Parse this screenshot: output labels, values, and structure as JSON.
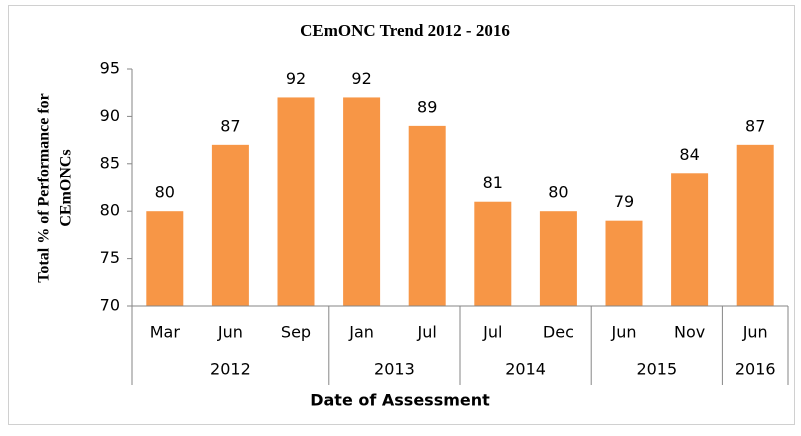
{
  "chart_data": {
    "type": "bar",
    "title": "CEmONC Trend 2012 - 2016",
    "ylabel": [
      "Total % of Performance for",
      "CEmONCs"
    ],
    "xlabel": "Date of Assessment",
    "color": "#f79646",
    "ylim": [
      70,
      95
    ],
    "yticks": [
      70,
      75,
      80,
      85,
      90,
      95
    ],
    "groups": [
      {
        "label": "2012",
        "categories": [
          "Mar",
          "Jun",
          "Sep"
        ],
        "values": [
          80,
          87,
          92
        ]
      },
      {
        "label": "2013",
        "categories": [
          "Jan",
          "Jul"
        ],
        "values": [
          92,
          89
        ]
      },
      {
        "label": "2014",
        "categories": [
          "Jul",
          "Dec"
        ],
        "values": [
          81,
          80
        ]
      },
      {
        "label": "2015",
        "categories": [
          "Jun",
          "Nov"
        ],
        "values": [
          79,
          84
        ]
      },
      {
        "label": "2016",
        "categories": [
          "Jun"
        ],
        "values": [
          87
        ]
      }
    ]
  }
}
